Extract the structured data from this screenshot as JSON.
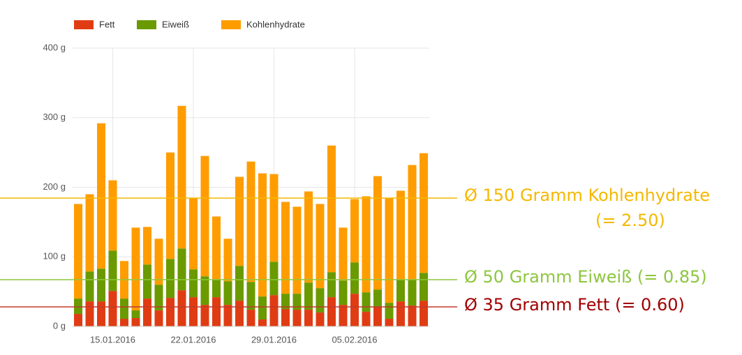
{
  "chart_data": {
    "type": "bar",
    "stacked": true,
    "categories": [
      null,
      null,
      null,
      "15.01.2016",
      null,
      null,
      null,
      null,
      null,
      null,
      "22.01.2016",
      null,
      null,
      null,
      null,
      null,
      null,
      "29.01.2016",
      null,
      null,
      null,
      null,
      null,
      null,
      "05.02.2016",
      null,
      null,
      null,
      null,
      null,
      null
    ],
    "series": [
      {
        "name": "Fett",
        "color": "#e03c14",
        "values": [
          18,
          36,
          36,
          51,
          11,
          12,
          40,
          23,
          41,
          52,
          42,
          31,
          42,
          31,
          37,
          24,
          10,
          45,
          25,
          24,
          24,
          20,
          42,
          31,
          47,
          21,
          28,
          11,
          36,
          30,
          37
        ]
      },
      {
        "name": "Eiweiß",
        "color": "#6a9a00",
        "values": [
          22,
          43,
          47,
          58,
          29,
          11,
          49,
          37,
          56,
          60,
          40,
          41,
          26,
          34,
          50,
          40,
          33,
          48,
          22,
          23,
          39,
          35,
          36,
          35,
          45,
          28,
          25,
          23,
          31,
          38,
          40
        ]
      },
      {
        "name": "Kohlenhydrate",
        "color": "#ff9d00",
        "values": [
          136,
          111,
          209,
          101,
          54,
          119,
          54,
          66,
          153,
          205,
          103,
          173,
          90,
          61,
          128,
          173,
          177,
          126,
          132,
          125,
          131,
          121,
          182,
          76,
          91,
          138,
          163,
          150,
          128,
          164,
          172
        ]
      }
    ],
    "ylim": [
      0,
      400
    ],
    "yticks": [
      {
        "value": 0,
        "label": "0 g"
      },
      {
        "value": 100,
        "label": "100 g"
      },
      {
        "value": 200,
        "label": "200 g"
      },
      {
        "value": 300,
        "label": "300 g"
      },
      {
        "value": 400,
        "label": "400 g"
      }
    ],
    "grid": true,
    "legend": "top-left",
    "annotations": [
      "Ø 150 Gramm Kohlenhydrate",
      "(= 2.50)",
      "Ø 50 Gramm Eiweiß (= 0.85)",
      "Ø 35 Gramm Fett (= 0.60)"
    ]
  }
}
